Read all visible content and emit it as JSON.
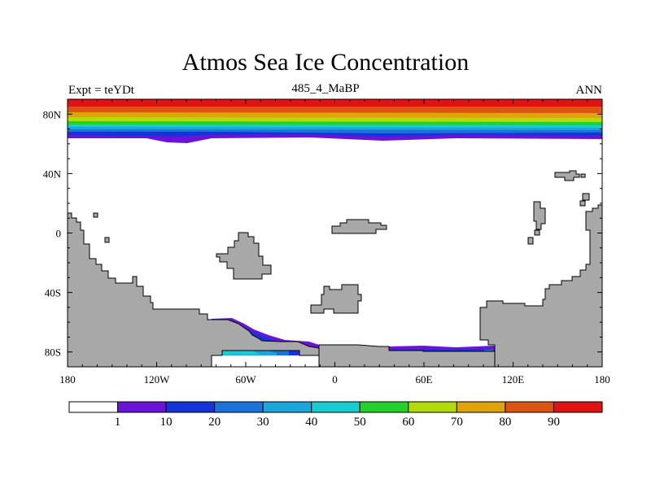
{
  "title": "Atmos Sea Ice Concentration",
  "experiment_label": "Expt = teYDt",
  "run_label": "485_4_MaBP",
  "season_label": "ANN",
  "x_ticks": [
    {
      "lon": -180,
      "label": "180"
    },
    {
      "lon": -120,
      "label": "120W"
    },
    {
      "lon": -60,
      "label": "60W"
    },
    {
      "lon": 0,
      "label": "0"
    },
    {
      "lon": 60,
      "label": "60E"
    },
    {
      "lon": 120,
      "label": "120E"
    },
    {
      "lon": 180,
      "label": "180"
    }
  ],
  "y_ticks": [
    {
      "lat": 80,
      "label": "80N"
    },
    {
      "lat": 40,
      "label": "40N"
    },
    {
      "lat": 0,
      "label": "0"
    },
    {
      "lat": -40,
      "label": "40S"
    },
    {
      "lat": -80,
      "label": "80S"
    }
  ],
  "colorbar": {
    "colors": [
      "#ffffff",
      "#6a14d9",
      "#1433d9",
      "#1a73d9",
      "#1aa6db",
      "#18cdd0",
      "#23d12a",
      "#b3db0c",
      "#e0a30a",
      "#db5412",
      "#e01212"
    ],
    "labels": [
      "1",
      "10",
      "20",
      "30",
      "40",
      "50",
      "60",
      "70",
      "80",
      "90"
    ]
  },
  "colors": {
    "land": "#a8a8a8",
    "ocean": "#ffffff"
  }
}
